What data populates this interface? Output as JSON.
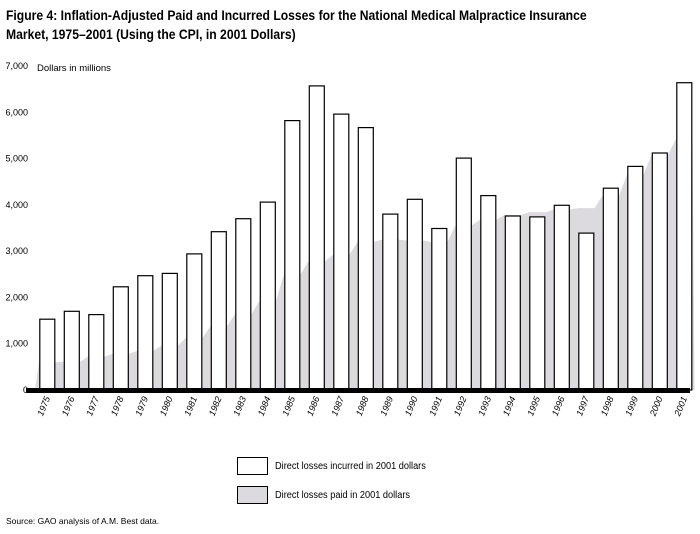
{
  "title": "Figure 4:  Inflation-Adjusted Paid and Incurred Losses for the National Medical Malpractice Insurance Market, 1975–2001 (Using the CPI, in 2001 Dollars)",
  "source": "Source: GAO analysis of A.M. Best data.",
  "chart_data": {
    "type": "bar",
    "ylabel": "Dollars in millions",
    "ylim": [
      0,
      7000
    ],
    "y_ticks": [
      "0",
      "1,000",
      "2,000",
      "3,000",
      "4,000",
      "5,000",
      "6,000",
      "7,000"
    ],
    "categories": [
      "1975",
      "1976",
      "1977",
      "1978",
      "1979",
      "1980",
      "1981",
      "1982",
      "1983",
      "1984",
      "1985",
      "1986",
      "1987",
      "1988",
      "1989",
      "1990",
      "1991",
      "1992",
      "1993",
      "1994",
      "1995",
      "1996",
      "1997",
      "1998",
      "1999",
      "2000",
      "2001"
    ],
    "series": [
      {
        "name": "Direct losses incurred in 2001 dollars",
        "type": "bar",
        "values": [
          1530,
          1700,
          1630,
          2230,
          2470,
          2520,
          2940,
          3420,
          3700,
          4060,
          5820,
          6570,
          5960,
          5670,
          3800,
          4120,
          3490,
          5010,
          4200,
          3760,
          3740,
          3990,
          3390,
          4360,
          4830,
          5120,
          6640
        ]
      },
      {
        "name": "Direct losses paid in 2001 dollars",
        "type": "area",
        "values": [
          600,
          610,
          720,
          780,
          850,
          960,
          1130,
          1380,
          1640,
          1930,
          2500,
          2780,
          2920,
          3200,
          3250,
          3230,
          3200,
          3560,
          3680,
          3780,
          3840,
          3900,
          3930,
          4200,
          4650,
          5080,
          5430
        ]
      }
    ],
    "legend_placement": "bottom",
    "grid": false,
    "colors": {
      "paid_fill": "#dcdadf",
      "bar_fill": "#ffffff",
      "stroke": "#000000"
    }
  }
}
